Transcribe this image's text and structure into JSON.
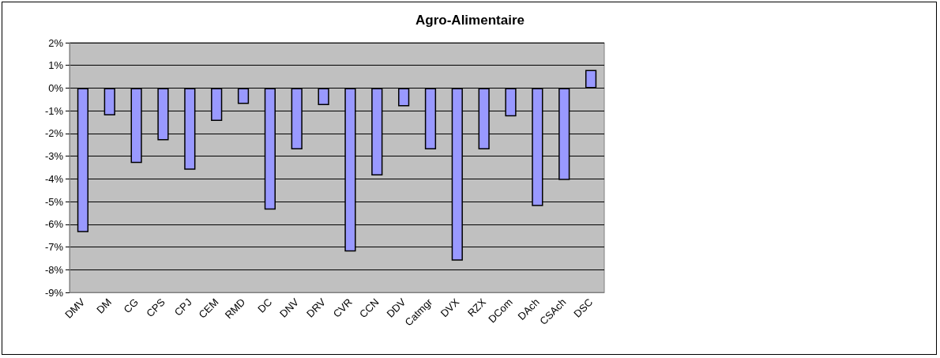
{
  "chart_data": {
    "type": "bar",
    "title": "Agro-Alimentaire",
    "categories": [
      "DMV",
      "DM",
      "CG",
      "CPS",
      "CPJ",
      "CEM",
      "RMD",
      "DC",
      "DNV",
      "DRV",
      "CVR",
      "CCN",
      "DDV",
      "Catmgr",
      "DVX",
      "RZX",
      "DCom",
      "DAch",
      "CSAch",
      "DSC"
    ],
    "values": [
      -6.35,
      -1.2,
      -3.3,
      -2.3,
      -3.6,
      -1.45,
      -0.7,
      -5.35,
      -2.7,
      -0.75,
      -7.2,
      -3.85,
      -0.8,
      -2.7,
      -7.6,
      -2.7,
      -1.25,
      -5.2,
      -4.05,
      0.8
    ],
    "color": "#9999ff",
    "ylim": [
      -9,
      2
    ],
    "yticks": [
      {
        "value": -9,
        "label": "-9%"
      },
      {
        "value": -8,
        "label": "-8%"
      },
      {
        "value": -7,
        "label": "-7%"
      },
      {
        "value": -6,
        "label": "-6%"
      },
      {
        "value": -5,
        "label": "-5%"
      },
      {
        "value": -4,
        "label": "-4%"
      },
      {
        "value": -3,
        "label": "-3%"
      },
      {
        "value": -2,
        "label": "-2%"
      },
      {
        "value": -1,
        "label": "-1%"
      },
      {
        "value": 0,
        "label": "0%"
      },
      {
        "value": 1,
        "label": "1%"
      },
      {
        "value": 2,
        "label": "2%"
      }
    ],
    "grid": "y"
  }
}
